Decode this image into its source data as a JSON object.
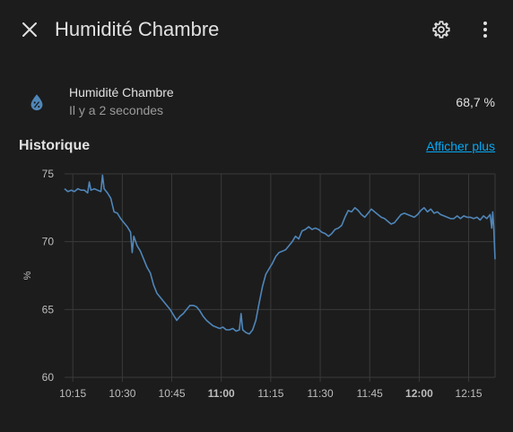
{
  "dialog": {
    "title": "Humidité Chambre",
    "icons": {
      "close": "close-icon",
      "settings": "gear-icon",
      "menu": "dots-vertical-icon"
    }
  },
  "entity": {
    "icon": "water-percent-icon",
    "name": "Humidité Chambre",
    "last_changed": "Il y a 2 secondes",
    "state": "68,7 %"
  },
  "history": {
    "title": "Historique",
    "show_more": "Afficher plus"
  },
  "colors": {
    "accent": "#03a9f4",
    "line": "#4f86b9",
    "background": "#1c1c1c"
  },
  "chart_data": {
    "type": "line",
    "ylabel": "%",
    "ylim": [
      60,
      75
    ],
    "yticks": [
      "60",
      "65",
      "70",
      "75"
    ],
    "xticks": [
      {
        "label": "10:15",
        "t": 615,
        "bold": false
      },
      {
        "label": "10:30",
        "t": 630,
        "bold": false
      },
      {
        "label": "10:45",
        "t": 645,
        "bold": false
      },
      {
        "label": "11:00",
        "t": 660,
        "bold": true
      },
      {
        "label": "11:15",
        "t": 675,
        "bold": false
      },
      {
        "label": "11:30",
        "t": 690,
        "bold": false
      },
      {
        "label": "11:45",
        "t": 705,
        "bold": false
      },
      {
        "label": "12:00",
        "t": 720,
        "bold": true
      },
      {
        "label": "12:15",
        "t": 735,
        "bold": false
      }
    ],
    "xlim_minutes": [
      612.5,
      743
    ],
    "series": [
      {
        "points": [
          [
            612.5,
            73.9
          ],
          [
            613.5,
            73.7
          ],
          [
            614.5,
            73.8
          ],
          [
            615.5,
            73.7
          ],
          [
            616.5,
            73.9
          ],
          [
            617.5,
            73.8
          ],
          [
            618.5,
            73.8
          ],
          [
            619.5,
            73.6
          ],
          [
            620,
            74.4
          ],
          [
            620.5,
            73.8
          ],
          [
            621.5,
            73.9
          ],
          [
            622.5,
            73.8
          ],
          [
            623.5,
            73.7
          ],
          [
            624,
            74.9
          ],
          [
            624.5,
            73.9
          ],
          [
            625.5,
            73.6
          ],
          [
            626.5,
            73.2
          ],
          [
            627.5,
            72.2
          ],
          [
            628.5,
            72.1
          ],
          [
            629.5,
            71.7
          ],
          [
            630.5,
            71.4
          ],
          [
            631.5,
            71.1
          ],
          [
            632.5,
            70.7
          ],
          [
            633,
            69.2
          ],
          [
            633.5,
            70.4
          ],
          [
            634.5,
            69.7
          ],
          [
            635.5,
            69.3
          ],
          [
            636.5,
            68.7
          ],
          [
            637.5,
            68.1
          ],
          [
            638.5,
            67.7
          ],
          [
            639.5,
            66.8
          ],
          [
            640.5,
            66.2
          ],
          [
            641.5,
            65.9
          ],
          [
            642.5,
            65.6
          ],
          [
            643.5,
            65.3
          ],
          [
            644.5,
            65.0
          ],
          [
            645.5,
            64.6
          ],
          [
            646.5,
            64.2
          ],
          [
            647.5,
            64.5
          ],
          [
            648.5,
            64.7
          ],
          [
            649.5,
            65.0
          ],
          [
            650.5,
            65.3
          ],
          [
            651.5,
            65.3
          ],
          [
            652.5,
            65.2
          ],
          [
            653.5,
            64.9
          ],
          [
            654.5,
            64.5
          ],
          [
            655.5,
            64.2
          ],
          [
            656.5,
            64.0
          ],
          [
            657.5,
            63.8
          ],
          [
            658.5,
            63.7
          ],
          [
            659.5,
            63.6
          ],
          [
            660.5,
            63.7
          ],
          [
            661.5,
            63.5
          ],
          [
            662.5,
            63.5
          ],
          [
            663.5,
            63.6
          ],
          [
            664.5,
            63.4
          ],
          [
            665.5,
            63.5
          ],
          [
            666,
            64.7
          ],
          [
            666.5,
            63.5
          ],
          [
            667.5,
            63.3
          ],
          [
            668.5,
            63.2
          ],
          [
            669.5,
            63.5
          ],
          [
            670.5,
            64.2
          ],
          [
            671.5,
            65.5
          ],
          [
            672.5,
            66.7
          ],
          [
            673.5,
            67.6
          ],
          [
            674.5,
            68.0
          ],
          [
            675.5,
            68.4
          ],
          [
            676.5,
            68.9
          ],
          [
            677.5,
            69.2
          ],
          [
            678.5,
            69.3
          ],
          [
            679.5,
            69.4
          ],
          [
            680.5,
            69.7
          ],
          [
            681.5,
            70.0
          ],
          [
            682.5,
            70.4
          ],
          [
            683.5,
            70.2
          ],
          [
            684.5,
            70.8
          ],
          [
            685.5,
            70.9
          ],
          [
            686.5,
            71.1
          ],
          [
            687.5,
            70.9
          ],
          [
            688.5,
            71.0
          ],
          [
            689.5,
            70.9
          ],
          [
            690.5,
            70.7
          ],
          [
            691.5,
            70.6
          ],
          [
            692.5,
            70.4
          ],
          [
            693.5,
            70.6
          ],
          [
            694.5,
            70.9
          ],
          [
            695.5,
            71.0
          ],
          [
            696.5,
            71.2
          ],
          [
            697.5,
            71.8
          ],
          [
            698.5,
            72.3
          ],
          [
            699.5,
            72.2
          ],
          [
            700.5,
            72.5
          ],
          [
            701.5,
            72.3
          ],
          [
            702.5,
            72.0
          ],
          [
            703.5,
            71.8
          ],
          [
            704.5,
            72.1
          ],
          [
            705.5,
            72.4
          ],
          [
            706.5,
            72.2
          ],
          [
            707.5,
            72.0
          ],
          [
            708.5,
            71.8
          ],
          [
            709.5,
            71.7
          ],
          [
            710.5,
            71.5
          ],
          [
            711.5,
            71.3
          ],
          [
            712.5,
            71.4
          ],
          [
            713.5,
            71.7
          ],
          [
            714.5,
            72.0
          ],
          [
            715.5,
            72.1
          ],
          [
            716.5,
            72.0
          ],
          [
            717.5,
            71.9
          ],
          [
            718.5,
            71.8
          ],
          [
            719.5,
            72.0
          ],
          [
            720.5,
            72.3
          ],
          [
            721.5,
            72.5
          ],
          [
            722.5,
            72.2
          ],
          [
            723.5,
            72.4
          ],
          [
            724.5,
            72.1
          ],
          [
            725.5,
            72.2
          ],
          [
            726.5,
            72.0
          ],
          [
            727.5,
            71.9
          ],
          [
            728.5,
            71.8
          ],
          [
            729.5,
            71.7
          ],
          [
            730.5,
            71.7
          ],
          [
            731.5,
            71.9
          ],
          [
            732.5,
            71.7
          ],
          [
            733.5,
            71.9
          ],
          [
            734.5,
            71.8
          ],
          [
            735.5,
            71.8
          ],
          [
            736.5,
            71.7
          ],
          [
            737.5,
            71.8
          ],
          [
            738.5,
            71.6
          ],
          [
            739.5,
            71.9
          ],
          [
            740.5,
            71.7
          ],
          [
            741.5,
            72.0
          ],
          [
            742,
            71.0
          ],
          [
            742.3,
            72.2
          ],
          [
            742.6,
            71.1
          ],
          [
            743,
            68.7
          ]
        ]
      }
    ],
    "grid": true
  }
}
